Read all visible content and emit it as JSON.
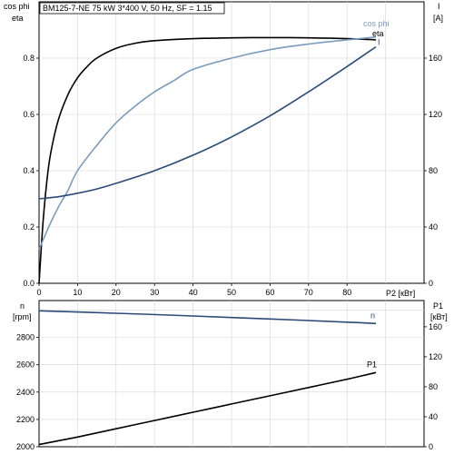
{
  "chart_data": [
    {
      "type": "line",
      "title": "BM125-7-NE   75 kW   3*400 V, 50 Hz, SF = 1.15",
      "xlabel": "P2 [кВт]",
      "xlim": [
        0,
        100
      ],
      "xticks": [
        0,
        10,
        20,
        30,
        40,
        50,
        60,
        70,
        80
      ],
      "ylabel_left": [
        "cos phi",
        "eta"
      ],
      "ylim_left": [
        0,
        1.0
      ],
      "yticks_left": [
        0.0,
        0.2,
        0.4,
        0.6,
        0.8
      ],
      "ylabel_right": [
        "I",
        "[A]"
      ],
      "ylim_right": [
        0,
        200
      ],
      "yticks_right": [
        0,
        40,
        80,
        120,
        160
      ],
      "grid": true,
      "series": [
        {
          "name": "eta",
          "axis": "left",
          "color": "#000000",
          "x": [
            0,
            1,
            2,
            3,
            5,
            7.5,
            10,
            12.5,
            15,
            20,
            25,
            30,
            40,
            50,
            60,
            70,
            80,
            87.5
          ],
          "y": [
            0.0,
            0.21,
            0.36,
            0.46,
            0.58,
            0.67,
            0.73,
            0.77,
            0.8,
            0.835,
            0.853,
            0.862,
            0.869,
            0.872,
            0.873,
            0.872,
            0.869,
            0.865
          ]
        },
        {
          "name": "cos phi",
          "axis": "left",
          "color": "#7a9cc0",
          "x": [
            0,
            2.5,
            5,
            7.5,
            10,
            15,
            20,
            25,
            30,
            35,
            40,
            50,
            60,
            70,
            80,
            87.5
          ],
          "y": [
            0.12,
            0.2,
            0.27,
            0.33,
            0.4,
            0.49,
            0.57,
            0.63,
            0.68,
            0.72,
            0.76,
            0.8,
            0.83,
            0.85,
            0.865,
            0.875
          ]
        },
        {
          "name": "I",
          "axis": "right",
          "color": "#2b4a78",
          "x": [
            0,
            5,
            10,
            15,
            20,
            30,
            40,
            50,
            60,
            70,
            80,
            87.5
          ],
          "y": [
            60,
            61.5,
            64,
            67,
            71,
            80,
            91,
            104,
            119,
            136,
            154,
            168
          ]
        }
      ]
    },
    {
      "type": "line",
      "xlim": [
        0,
        100
      ],
      "ylabel_left": [
        "n",
        "[rpm]"
      ],
      "ylim_left": [
        2000,
        3070
      ],
      "yticks_left": [
        2000,
        2200,
        2400,
        2600,
        2800
      ],
      "ylabel_right": [
        "P1",
        "[кВт]"
      ],
      "ylim_right": [
        0,
        195
      ],
      "yticks_right": [
        0,
        40,
        80,
        120,
        160
      ],
      "grid": true,
      "series": [
        {
          "name": "n",
          "axis": "left",
          "color": "#2b4a78",
          "x": [
            0,
            20,
            40,
            60,
            80,
            87.5
          ],
          "y": [
            2995,
            2977,
            2957,
            2935,
            2912,
            2902
          ]
        },
        {
          "name": "P1",
          "axis": "right",
          "color": "#000000",
          "x": [
            0,
            10,
            20,
            30,
            40,
            50,
            60,
            70,
            80,
            87.5
          ],
          "y": [
            3,
            13,
            24,
            35,
            46,
            57,
            68,
            79,
            90,
            99
          ]
        }
      ]
    }
  ]
}
